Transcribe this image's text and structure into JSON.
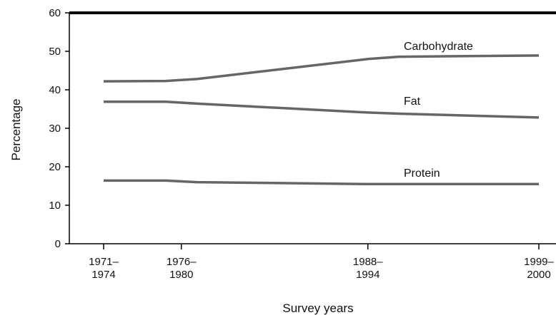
{
  "chart_data": {
    "type": "line",
    "xlabel": "Survey years",
    "ylabel": "Percentage",
    "ylim": [
      0,
      60
    ],
    "yticks": [
      "0",
      "10",
      "20",
      "30",
      "40",
      "50",
      "60"
    ],
    "x_tick_labels": [
      {
        "year": 1971,
        "lines": [
          "1971–",
          "1974"
        ]
      },
      {
        "year": 1976,
        "lines": [
          "1976–",
          "1980"
        ]
      },
      {
        "year": 1988,
        "lines": [
          "1988–",
          "1994"
        ]
      },
      {
        "year": 1999,
        "lines": [
          "1999–",
          "2000"
        ]
      }
    ],
    "series": [
      {
        "name": "Carbohydrate",
        "points": [
          [
            1971,
            42.2
          ],
          [
            1975,
            42.3
          ],
          [
            1977,
            42.8
          ],
          [
            1988,
            48.0
          ],
          [
            1990,
            48.6
          ],
          [
            1999,
            48.9
          ]
        ]
      },
      {
        "name": "Fat",
        "points": [
          [
            1971,
            36.9
          ],
          [
            1975,
            36.9
          ],
          [
            1977,
            36.4
          ],
          [
            1988,
            34.1
          ],
          [
            1990,
            33.8
          ],
          [
            1999,
            32.8
          ]
        ]
      },
      {
        "name": "Protein",
        "points": [
          [
            1971,
            16.4
          ],
          [
            1975,
            16.4
          ],
          [
            1977,
            16.0
          ],
          [
            1988,
            15.5
          ],
          [
            1990,
            15.5
          ],
          [
            1999,
            15.5
          ]
        ]
      }
    ]
  }
}
